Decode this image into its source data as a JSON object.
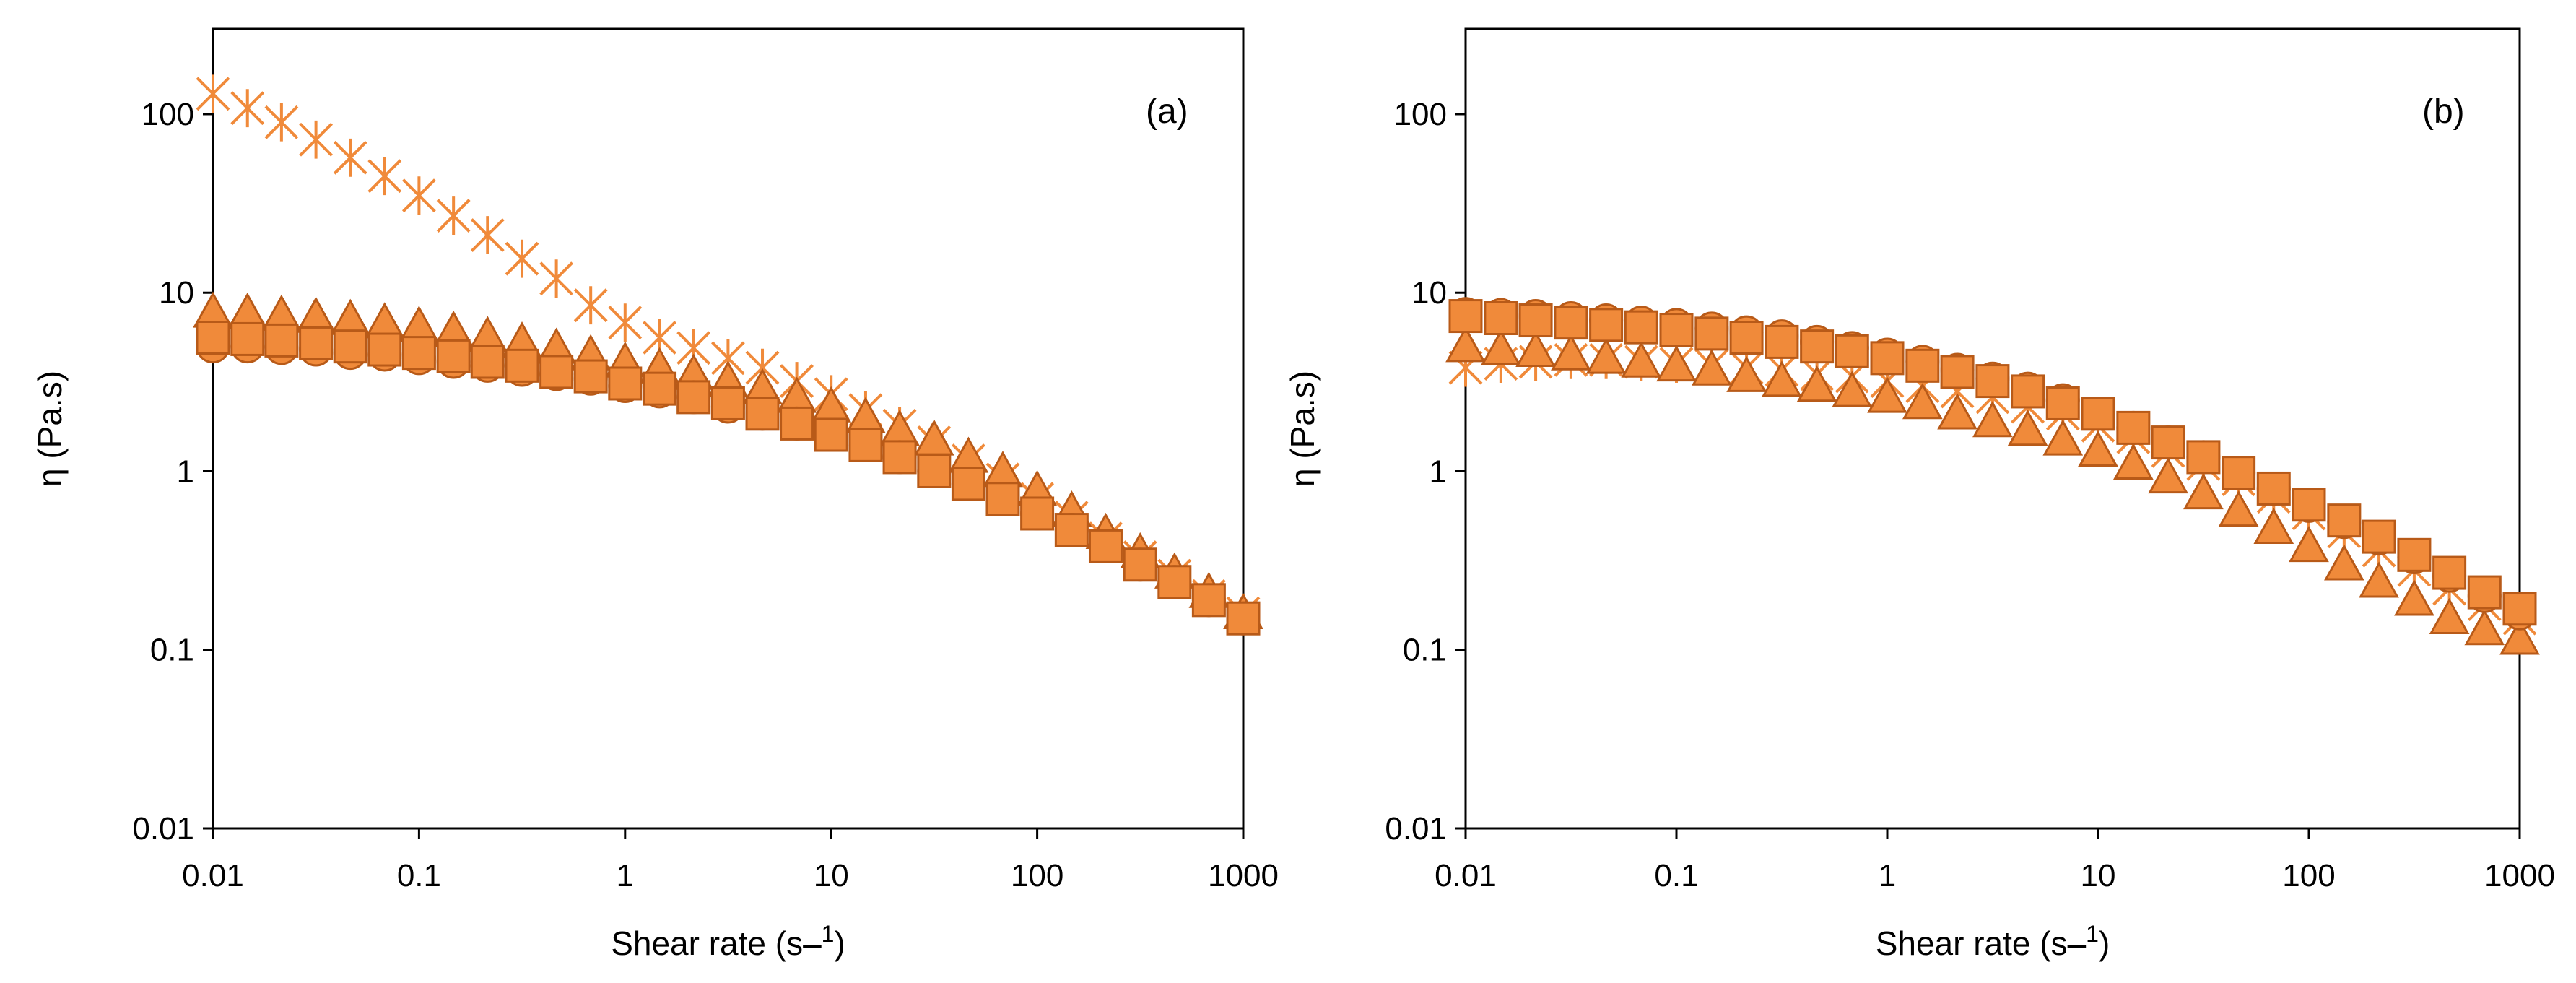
{
  "colors": {
    "marker_fill": "#F08A3A",
    "marker_edge": "#B85A18",
    "axis": "#000000",
    "background": "#FFFFFF"
  },
  "chart_data": [
    {
      "type": "scatter",
      "panel_label": "(a)",
      "xlabel": "Shear rate (s–1)",
      "ylabel": "η (Pa.s)",
      "xscale": "log",
      "yscale": "log",
      "xlim": [
        0.01,
        1000
      ],
      "ylim": [
        0.01,
        300
      ],
      "x_ticks": [
        "0.01",
        "0.1",
        "1",
        "10",
        "100",
        "1000"
      ],
      "y_ticks": [
        "0.01",
        "0.1",
        "1",
        "10",
        "100"
      ],
      "grid": false,
      "legend": "none",
      "series": [
        {
          "marker": "cross-star",
          "x": [
            0.01,
            0.0147,
            0.0215,
            0.0316,
            0.0464,
            0.0681,
            0.1,
            0.147,
            0.215,
            0.316,
            0.464,
            0.681,
            1,
            1.47,
            2.15,
            3.16,
            4.64,
            6.81,
            10,
            14.7,
            21.5,
            31.6,
            46.4,
            68.1,
            100,
            147,
            215,
            316,
            464,
            681,
            1000
          ],
          "y": [
            130,
            108,
            90,
            72,
            57,
            45,
            35,
            27,
            21,
            15.5,
            12,
            8.5,
            6.8,
            5.6,
            4.9,
            4.3,
            3.8,
            3.2,
            2.7,
            2.2,
            1.8,
            1.45,
            1.15,
            0.9,
            0.7,
            0.55,
            0.42,
            0.33,
            0.26,
            0.2,
            0.16
          ]
        },
        {
          "marker": "triangle",
          "x": [
            0.01,
            0.0147,
            0.0215,
            0.0316,
            0.0464,
            0.0681,
            0.1,
            0.147,
            0.215,
            0.316,
            0.464,
            0.681,
            1,
            1.47,
            2.15,
            3.16,
            4.64,
            6.81,
            10,
            14.7,
            21.5,
            31.6,
            46.4,
            68.1,
            100,
            147,
            215,
            316,
            464,
            681,
            1000
          ],
          "y": [
            7.8,
            7.7,
            7.5,
            7.3,
            7.1,
            6.8,
            6.5,
            6.1,
            5.7,
            5.3,
            4.9,
            4.5,
            4.1,
            3.8,
            3.5,
            3.2,
            2.9,
            2.6,
            2.3,
            2.0,
            1.7,
            1.5,
            1.2,
            1.0,
            0.78,
            0.6,
            0.45,
            0.35,
            0.27,
            0.21,
            0.16
          ]
        },
        {
          "marker": "circle",
          "x": [
            0.01,
            0.0147,
            0.0215,
            0.0316,
            0.0464,
            0.0681,
            0.1,
            0.147,
            0.215,
            0.316,
            0.464,
            0.681,
            1,
            1.47,
            2.15,
            3.16,
            4.64,
            6.81,
            10,
            14.7,
            21.5,
            31.6,
            46.4,
            68.1,
            100,
            147,
            215,
            316,
            464,
            681,
            1000
          ],
          "y": [
            5.0,
            5.0,
            4.9,
            4.8,
            4.6,
            4.5,
            4.3,
            4.1,
            3.9,
            3.7,
            3.5,
            3.3,
            3.0,
            2.8,
            2.6,
            2.3,
            2.1,
            1.85,
            1.6,
            1.4,
            1.2,
            1.0,
            0.85,
            0.7,
            0.58,
            0.47,
            0.38,
            0.3,
            0.24,
            0.19,
            0.15
          ]
        },
        {
          "marker": "square",
          "x": [
            0.01,
            0.0147,
            0.0215,
            0.0316,
            0.0464,
            0.0681,
            0.1,
            0.147,
            0.215,
            0.316,
            0.464,
            0.681,
            1,
            1.47,
            2.15,
            3.16,
            4.64,
            6.81,
            10,
            14.7,
            21.5,
            31.6,
            46.4,
            68.1,
            100,
            147,
            215,
            316,
            464,
            681,
            1000
          ],
          "y": [
            5.6,
            5.5,
            5.4,
            5.2,
            5.0,
            4.8,
            4.6,
            4.4,
            4.1,
            3.9,
            3.6,
            3.4,
            3.1,
            2.9,
            2.6,
            2.4,
            2.1,
            1.85,
            1.6,
            1.4,
            1.2,
            1.0,
            0.85,
            0.7,
            0.58,
            0.47,
            0.38,
            0.3,
            0.24,
            0.19,
            0.15
          ]
        }
      ]
    },
    {
      "type": "scatter",
      "panel_label": "(b)",
      "xlabel": "Shear rate (s–1)",
      "ylabel": "η (Pa.s)",
      "xscale": "log",
      "yscale": "log",
      "xlim": [
        0.01,
        1000
      ],
      "ylim": [
        0.01,
        300
      ],
      "x_ticks": [
        "0.01",
        "0.1",
        "1",
        "10",
        "100",
        "1000"
      ],
      "y_ticks": [
        "0.01",
        "0.1",
        "1",
        "10",
        "100"
      ],
      "grid": false,
      "legend": "none",
      "series": [
        {
          "marker": "cross-star",
          "x": [
            0.01,
            0.0147,
            0.0215,
            0.0316,
            0.0464,
            0.0681,
            0.1,
            0.147,
            0.215,
            0.316,
            0.464,
            0.681,
            1,
            1.47,
            2.15,
            3.16,
            4.64,
            6.81,
            10,
            14.7,
            21.5,
            31.6,
            46.4,
            68.1,
            100,
            147,
            215,
            316,
            464,
            681,
            1000
          ],
          "y": [
            3.8,
            4.0,
            4.1,
            4.2,
            4.2,
            4.1,
            4.0,
            3.9,
            3.8,
            3.7,
            3.5,
            3.4,
            3.2,
            3.0,
            2.8,
            2.6,
            2.3,
            2.1,
            1.8,
            1.55,
            1.3,
            1.1,
            0.9,
            0.72,
            0.58,
            0.46,
            0.36,
            0.28,
            0.22,
            0.18,
            0.15
          ]
        },
        {
          "marker": "triangle",
          "x": [
            0.01,
            0.0147,
            0.0215,
            0.0316,
            0.0464,
            0.0681,
            0.1,
            0.147,
            0.215,
            0.316,
            0.464,
            0.681,
            1,
            1.47,
            2.15,
            3.16,
            4.64,
            6.81,
            10,
            14.7,
            21.5,
            31.6,
            46.4,
            68.1,
            100,
            147,
            215,
            316,
            464,
            681,
            1000
          ],
          "y": [
            5.0,
            4.8,
            4.7,
            4.5,
            4.3,
            4.1,
            3.9,
            3.7,
            3.4,
            3.2,
            3.0,
            2.8,
            2.6,
            2.4,
            2.1,
            1.9,
            1.7,
            1.5,
            1.3,
            1.1,
            0.92,
            0.75,
            0.6,
            0.48,
            0.38,
            0.3,
            0.24,
            0.19,
            0.15,
            0.13,
            0.115
          ]
        },
        {
          "marker": "circle",
          "x": [
            0.01,
            0.0147,
            0.0215,
            0.0316,
            0.0464,
            0.0681,
            0.1,
            0.147,
            0.215,
            0.316,
            0.464,
            0.681,
            1,
            1.47,
            2.15,
            3.16,
            4.64,
            6.81,
            10,
            14.7,
            21.5,
            31.6,
            46.4,
            68.1,
            100,
            147,
            215,
            316,
            464,
            681,
            1000
          ],
          "y": [
            7.6,
            7.5,
            7.4,
            7.2,
            7.0,
            6.8,
            6.6,
            6.3,
            6.0,
            5.7,
            5.3,
            4.9,
            4.5,
            4.1,
            3.7,
            3.3,
            2.9,
            2.5,
            2.1,
            1.75,
            1.45,
            1.2,
            0.98,
            0.8,
            0.64,
            0.52,
            0.42,
            0.33,
            0.26,
            0.2,
            0.16
          ]
        },
        {
          "marker": "square",
          "x": [
            0.01,
            0.0147,
            0.0215,
            0.0316,
            0.0464,
            0.0681,
            0.1,
            0.147,
            0.215,
            0.316,
            0.464,
            0.681,
            1,
            1.47,
            2.15,
            3.16,
            4.64,
            6.81,
            10,
            14.7,
            21.5,
            31.6,
            46.4,
            68.1,
            100,
            147,
            215,
            316,
            464,
            681,
            1000
          ],
          "y": [
            7.4,
            7.2,
            7.0,
            6.8,
            6.6,
            6.4,
            6.2,
            5.9,
            5.6,
            5.3,
            5.0,
            4.7,
            4.3,
            3.9,
            3.6,
            3.2,
            2.8,
            2.4,
            2.1,
            1.75,
            1.45,
            1.2,
            0.98,
            0.8,
            0.65,
            0.53,
            0.43,
            0.34,
            0.27,
            0.21,
            0.17
          ]
        }
      ]
    }
  ]
}
